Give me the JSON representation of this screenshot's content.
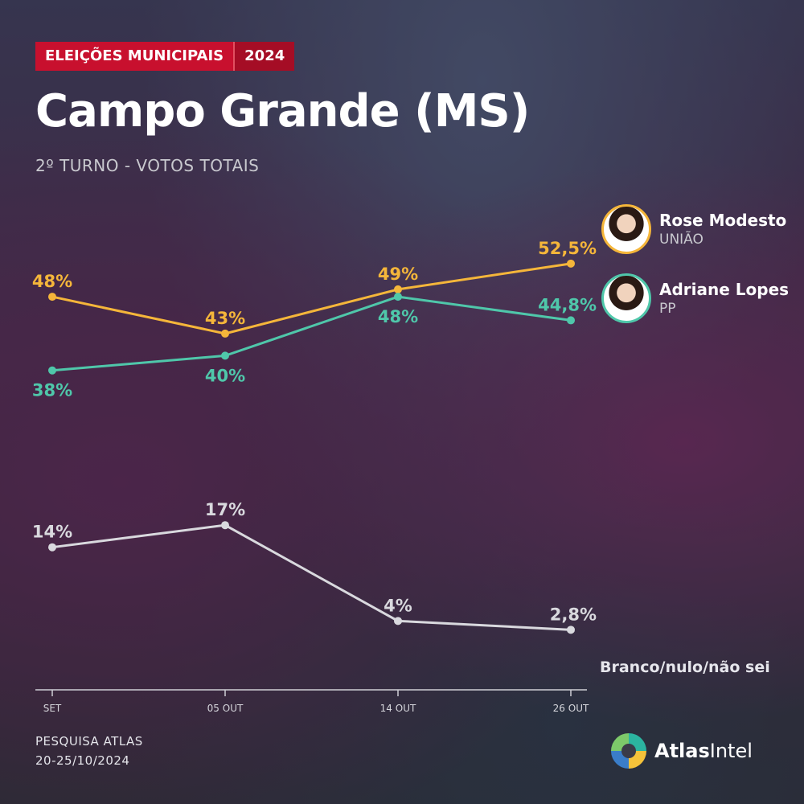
{
  "header": {
    "tag_label": "ELEIÇÕES MUNICIPAIS",
    "tag_year": "2024",
    "title": "Campo Grande (MS)",
    "subtitle": "2º TURNO - VOTOS TOTAIS"
  },
  "candidates": [
    {
      "name": "Rose Modesto",
      "party": "UNIÃO",
      "color": "#f5b63a"
    },
    {
      "name": "Adriane Lopes",
      "party": "PP",
      "color": "#4fc7aa"
    }
  ],
  "footer": {
    "source": "PESQUISA ATLAS",
    "dates": "20-25/10/2024",
    "logo_bold": "Atlas",
    "logo_light": "Intel"
  },
  "chart_data": {
    "type": "line",
    "categories": [
      "SET",
      "05 OUT",
      "14 OUT",
      "26 OUT"
    ],
    "series": [
      {
        "name": "Rose Modesto",
        "values": [
          48,
          43,
          49,
          52.5
        ],
        "labels": [
          "48%",
          "43%",
          "49%",
          "52,5%"
        ],
        "color": "#f5b63a"
      },
      {
        "name": "Adriane Lopes",
        "values": [
          38,
          40,
          48,
          44.8
        ],
        "labels": [
          "38%",
          "40%",
          "48%",
          "44,8%"
        ],
        "color": "#4fc7aa"
      },
      {
        "name": "Branco/nulo/não sei",
        "values": [
          14,
          17,
          4,
          2.8
        ],
        "labels": [
          "14%",
          "17%",
          "4%",
          "2,8%"
        ],
        "color": "#d9d9de"
      }
    ],
    "end_label": "Branco/nulo/não sei",
    "grid": false
  }
}
